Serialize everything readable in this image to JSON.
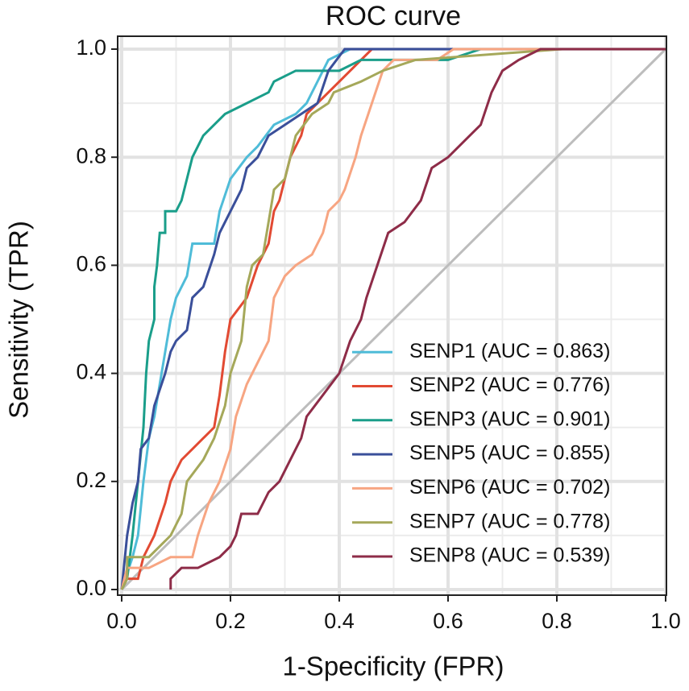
{
  "chart_data": {
    "type": "line",
    "title": "ROC curve",
    "xlabel": "1-Specificity (FPR)",
    "ylabel": "Sensitivity (TPR)",
    "xlim": [
      0,
      1
    ],
    "ylim": [
      0,
      1
    ],
    "xticks": [
      {
        "value": 0,
        "label": "0.0"
      },
      0.2,
      0.4,
      0.6,
      0.8,
      {
        "value": 1,
        "label": "1.0"
      }
    ],
    "yticks": [
      {
        "value": 0,
        "label": "0.0"
      },
      0.2,
      0.4,
      0.6,
      0.8,
      {
        "value": 1,
        "label": "1.0"
      }
    ],
    "grid": true,
    "legend": "lower right",
    "series": [
      {
        "name": "SENP1 (AUC = 0.863)",
        "color": "#4fbcd8",
        "x": [
          0,
          0.02,
          0.03,
          0.04,
          0.05,
          0.06,
          0.07,
          0.08,
          0.09,
          0.1,
          0.12,
          0.13,
          0.17,
          0.18,
          0.2,
          0.23,
          0.25,
          0.28,
          0.32,
          0.34,
          0.36,
          0.38,
          0.42,
          1
        ],
        "values": [
          0,
          0.06,
          0.1,
          0.2,
          0.28,
          0.32,
          0.38,
          0.44,
          0.5,
          0.54,
          0.58,
          0.64,
          0.64,
          0.7,
          0.76,
          0.8,
          0.82,
          0.86,
          0.88,
          0.9,
          0.94,
          0.98,
          1,
          1
        ]
      },
      {
        "name": "SENP2 (AUC = 0.776)",
        "color": "#e24a33",
        "x": [
          0,
          0.01,
          0.03,
          0.04,
          0.06,
          0.08,
          0.09,
          0.11,
          0.13,
          0.15,
          0.17,
          0.18,
          0.19,
          0.2,
          0.23,
          0.25,
          0.27,
          0.28,
          0.29,
          0.3,
          0.31,
          0.33,
          0.34,
          0.38,
          0.4,
          0.44,
          0.46,
          1
        ],
        "values": [
          0,
          0.02,
          0.02,
          0.06,
          0.1,
          0.16,
          0.2,
          0.24,
          0.26,
          0.28,
          0.3,
          0.36,
          0.44,
          0.5,
          0.54,
          0.6,
          0.64,
          0.7,
          0.72,
          0.76,
          0.8,
          0.84,
          0.88,
          0.92,
          0.94,
          0.98,
          1,
          1
        ]
      },
      {
        "name": "SENP3 (AUC = 0.901)",
        "color": "#1a9e8a",
        "x": [
          0,
          0.01,
          0.02,
          0.03,
          0.04,
          0.045,
          0.05,
          0.06,
          0.06,
          0.065,
          0.07,
          0.08,
          0.08,
          0.1,
          0.11,
          0.12,
          0.13,
          0.15,
          0.17,
          0.19,
          0.23,
          0.27,
          0.28,
          0.32,
          0.4,
          0.44,
          0.6,
          0.66,
          1
        ],
        "values": [
          0,
          0.02,
          0.1,
          0.2,
          0.3,
          0.4,
          0.46,
          0.5,
          0.56,
          0.6,
          0.66,
          0.66,
          0.7,
          0.7,
          0.72,
          0.76,
          0.8,
          0.84,
          0.86,
          0.88,
          0.9,
          0.92,
          0.94,
          0.96,
          0.96,
          0.98,
          0.98,
          1,
          1
        ]
      },
      {
        "name": "SENP5 (AUC = 0.855)",
        "color": "#3a4f9a",
        "x": [
          0,
          0.01,
          0.02,
          0.03,
          0.035,
          0.05,
          0.06,
          0.08,
          0.09,
          0.1,
          0.12,
          0.13,
          0.15,
          0.17,
          0.18,
          0.2,
          0.22,
          0.23,
          0.25,
          0.27,
          0.3,
          0.33,
          0.36,
          0.38,
          0.41,
          1
        ],
        "values": [
          0,
          0.1,
          0.16,
          0.2,
          0.26,
          0.28,
          0.34,
          0.4,
          0.44,
          0.46,
          0.48,
          0.54,
          0.56,
          0.62,
          0.66,
          0.7,
          0.74,
          0.78,
          0.8,
          0.84,
          0.86,
          0.88,
          0.9,
          0.96,
          1,
          1
        ]
      },
      {
        "name": "SENP6 (AUC = 0.702)",
        "color": "#f7a582",
        "x": [
          0,
          0.01,
          0.05,
          0.09,
          0.13,
          0.14,
          0.16,
          0.18,
          0.2,
          0.21,
          0.23,
          0.25,
          0.27,
          0.28,
          0.3,
          0.32,
          0.35,
          0.37,
          0.38,
          0.4,
          0.41,
          0.43,
          0.44,
          0.46,
          0.48,
          0.5,
          0.58,
          0.61,
          1
        ],
        "values": [
          0,
          0.04,
          0.04,
          0.06,
          0.06,
          0.1,
          0.16,
          0.2,
          0.26,
          0.32,
          0.38,
          0.42,
          0.46,
          0.54,
          0.58,
          0.6,
          0.62,
          0.66,
          0.7,
          0.72,
          0.74,
          0.8,
          0.84,
          0.9,
          0.96,
          0.98,
          0.98,
          1,
          1
        ]
      },
      {
        "name": "SENP7 (AUC = 0.778)",
        "color": "#a5a85a",
        "x": [
          0,
          0.01,
          0.01,
          0.05,
          0.07,
          0.09,
          0.11,
          0.12,
          0.15,
          0.17,
          0.19,
          0.2,
          0.22,
          0.23,
          0.24,
          0.26,
          0.27,
          0.28,
          0.3,
          0.32,
          0.35,
          0.38,
          0.39,
          0.44,
          0.48,
          0.54,
          0.81,
          1
        ],
        "values": [
          0,
          0.02,
          0.06,
          0.06,
          0.08,
          0.1,
          0.14,
          0.2,
          0.24,
          0.28,
          0.34,
          0.4,
          0.46,
          0.56,
          0.6,
          0.62,
          0.68,
          0.74,
          0.76,
          0.84,
          0.88,
          0.9,
          0.92,
          0.94,
          0.96,
          0.98,
          1,
          1
        ]
      },
      {
        "name": "SENP8 (AUC = 0.539)",
        "color": "#8e2c48",
        "x": [
          0.09,
          0.09,
          0.11,
          0.14,
          0.18,
          0.2,
          0.21,
          0.22,
          0.25,
          0.27,
          0.29,
          0.31,
          0.33,
          0.34,
          0.37,
          0.4,
          0.42,
          0.44,
          0.45,
          0.47,
          0.49,
          0.52,
          0.55,
          0.57,
          0.6,
          0.64,
          0.66,
          0.68,
          0.7,
          0.73,
          0.77,
          1
        ],
        "values": [
          0,
          0.02,
          0.04,
          0.04,
          0.06,
          0.08,
          0.1,
          0.14,
          0.14,
          0.18,
          0.2,
          0.24,
          0.28,
          0.32,
          0.36,
          0.4,
          0.46,
          0.5,
          0.54,
          0.6,
          0.66,
          0.68,
          0.72,
          0.78,
          0.8,
          0.84,
          0.86,
          0.92,
          0.96,
          0.98,
          1,
          1
        ]
      }
    ]
  }
}
